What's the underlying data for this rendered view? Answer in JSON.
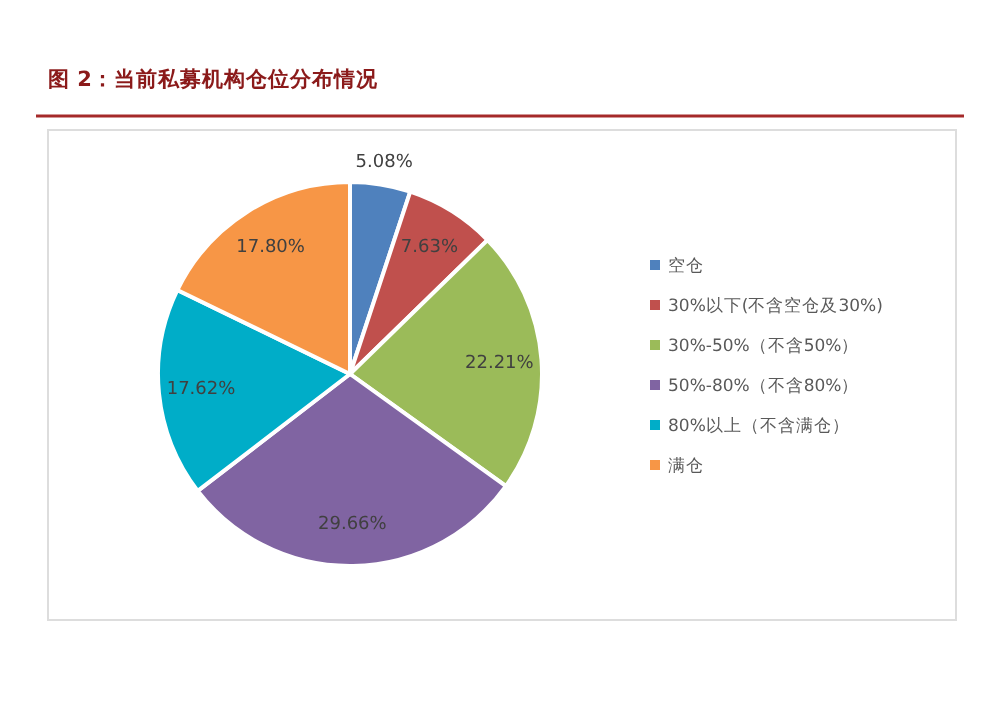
{
  "chart_data": {
    "type": "pie",
    "title": "图 2：当前私募机构仓位分布情况",
    "categories": [
      "空仓",
      "30%以下(不含空仓及30%)",
      "30%-50%（不含50%）",
      "50%-80%（不含80%）",
      "80%以上（不含满仓）",
      "满仓"
    ],
    "values": [
      5.08,
      7.63,
      22.21,
      29.66,
      17.62,
      17.8
    ],
    "colors": [
      "#4f81bd",
      "#c0504d",
      "#9bbb59",
      "#8064a2",
      "#00adc8",
      "#f79646"
    ],
    "value_labels": [
      "5.08%",
      "7.63%",
      "22.21%",
      "29.66%",
      "17.62%",
      "17.80%"
    ],
    "legend": "right"
  }
}
